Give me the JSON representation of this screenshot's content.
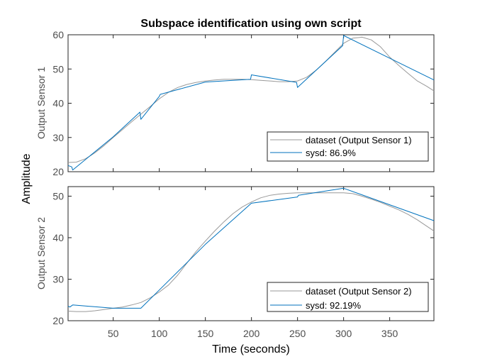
{
  "chart_data": {
    "type": "line",
    "title": "Subspace identification using own script",
    "xlabel": "Time (seconds)",
    "ylabel": "Amplitude",
    "xlim": [
      1,
      398
    ],
    "xticks": [
      50,
      100,
      150,
      200,
      250,
      300,
      350
    ],
    "grid": false,
    "subplots": [
      {
        "ylabel": "Output Sensor 1",
        "ylim": [
          20,
          60
        ],
        "yticks": [
          20,
          30,
          40,
          50,
          60
        ],
        "legend_position": "bottom-right",
        "series": [
          {
            "name": "dataset (Output Sensor 1)",
            "color": "#999999",
            "x": [
              1,
              10,
              20,
              30,
              40,
              50,
              60,
              70,
              80,
              90,
              100,
              110,
              120,
              130,
              140,
              150,
              160,
              170,
              180,
              190,
              200,
              210,
              220,
              230,
              240,
              250,
              260,
              270,
              280,
              290,
              300,
              310,
              320,
              330,
              340,
              350,
              360,
              370,
              380,
              390,
              398
            ],
            "y": [
              22.7,
              22.8,
              23.8,
              25.5,
              27.6,
              30.0,
              32.3,
              34.6,
              36.8,
              39.0,
              41.3,
              43.2,
              44.6,
              45.5,
              46.1,
              46.5,
              46.8,
              47.0,
              47.0,
              47.0,
              46.9,
              46.7,
              46.5,
              46.3,
              46.3,
              46.5,
              47.6,
              49.6,
              52.1,
              54.8,
              57.5,
              59.0,
              59.3,
              58.5,
              56.5,
              53.5,
              51.0,
              48.7,
              46.5,
              45.0,
              43.6
            ]
          },
          {
            "name": "sysd: 86.9%",
            "color": "#0072bd",
            "x": [
              1,
              5,
              6,
              50,
              79,
              80,
              100,
              101,
              150,
              199,
              200,
              249,
              250,
              299,
              300,
              398
            ],
            "y": [
              21.8,
              21.4,
              20.5,
              30.2,
              37.4,
              35.3,
              42.0,
              42.6,
              46.2,
              47.0,
              48.3,
              46.1,
              44.6,
              56.8,
              59.8,
              46.8
            ]
          }
        ]
      },
      {
        "ylabel": "Output Sensor 2",
        "ylim": [
          20,
          52.3
        ],
        "yticks": [
          20,
          30,
          40,
          50
        ],
        "legend_position": "bottom-right",
        "series": [
          {
            "name": "dataset (Output Sensor 2)",
            "color": "#999999",
            "x": [
              1,
              10,
              20,
              30,
              40,
              50,
              60,
              70,
              80,
              90,
              100,
              110,
              120,
              130,
              140,
              150,
              160,
              170,
              180,
              190,
              200,
              210,
              220,
              230,
              240,
              250,
              260,
              270,
              280,
              290,
              300,
              310,
              320,
              330,
              340,
              350,
              360,
              370,
              380,
              390,
              398
            ],
            "y": [
              22.3,
              22.2,
              22.2,
              22.4,
              22.7,
              23.0,
              23.3,
              23.8,
              24.4,
              25.5,
              26.9,
              28.6,
              31.0,
              33.9,
              36.7,
              39.2,
              41.6,
              43.8,
              45.8,
              47.4,
              48.6,
              49.6,
              50.2,
              50.5,
              50.7,
              50.8,
              50.8,
              50.8,
              50.8,
              50.8,
              50.8,
              50.6,
              50.0,
              49.3,
              48.5,
              47.6,
              46.7,
              45.6,
              44.3,
              42.8,
              41.6
            ]
          },
          {
            "name": "sysd: 92.19%",
            "color": "#0072bd",
            "x": [
              1,
              3,
              6,
              50,
              80,
              100,
              150,
              200,
              250,
              251,
              300,
              398
            ],
            "y": [
              23.5,
              23.3,
              23.8,
              23.0,
              23.0,
              27.4,
              38.4,
              48.3,
              49.8,
              50.2,
              51.9,
              44.1
            ]
          }
        ]
      }
    ]
  }
}
